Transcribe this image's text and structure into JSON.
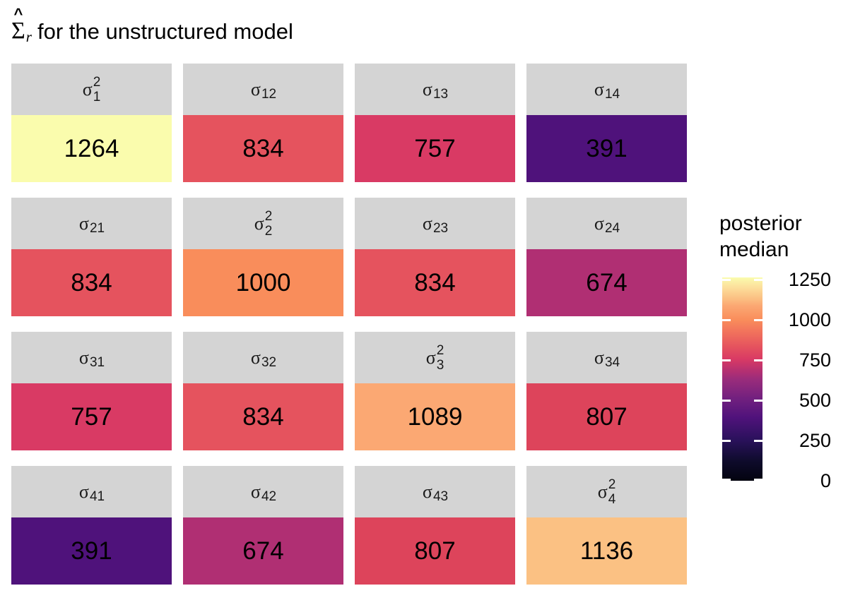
{
  "title": {
    "hat": "^",
    "sigma": "Σ",
    "subscript": "r",
    "text": "for the unstructured model"
  },
  "strip_background": "#D4D4D4",
  "facets": [
    {
      "id": "s11",
      "strip": {
        "base": "σ",
        "sub": "1",
        "sup": "2"
      },
      "value": "1264",
      "color": "#FAFCAD"
    },
    {
      "id": "s12",
      "strip": {
        "base": "σ",
        "sub": "12"
      },
      "value": "834",
      "color": "#E5535E"
    },
    {
      "id": "s13",
      "strip": {
        "base": "σ",
        "sub": "13"
      },
      "value": "757",
      "color": "#D93A64"
    },
    {
      "id": "s14",
      "strip": {
        "base": "σ",
        "sub": "14"
      },
      "value": "391",
      "color": "#4F127B"
    },
    {
      "id": "s21",
      "strip": {
        "base": "σ",
        "sub": "21"
      },
      "value": "834",
      "color": "#E5535E"
    },
    {
      "id": "s22",
      "strip": {
        "base": "σ",
        "sub": "2",
        "sup": "2"
      },
      "value": "1000",
      "color": "#F98D5B"
    },
    {
      "id": "s23",
      "strip": {
        "base": "σ",
        "sub": "23"
      },
      "value": "834",
      "color": "#E5535E"
    },
    {
      "id": "s24",
      "strip": {
        "base": "σ",
        "sub": "24"
      },
      "value": "674",
      "color": "#B02F73"
    },
    {
      "id": "s31",
      "strip": {
        "base": "σ",
        "sub": "31"
      },
      "value": "757",
      "color": "#D93A64"
    },
    {
      "id": "s32",
      "strip": {
        "base": "σ",
        "sub": "32"
      },
      "value": "834",
      "color": "#E5535E"
    },
    {
      "id": "s33",
      "strip": {
        "base": "σ",
        "sub": "3",
        "sup": "2"
      },
      "value": "1089",
      "color": "#FBA873"
    },
    {
      "id": "s34",
      "strip": {
        "base": "σ",
        "sub": "34"
      },
      "value": "807",
      "color": "#DD445B"
    },
    {
      "id": "s41",
      "strip": {
        "base": "σ",
        "sub": "41"
      },
      "value": "391",
      "color": "#4F127B"
    },
    {
      "id": "s42",
      "strip": {
        "base": "σ",
        "sub": "42"
      },
      "value": "674",
      "color": "#B02F73"
    },
    {
      "id": "s43",
      "strip": {
        "base": "σ",
        "sub": "43"
      },
      "value": "807",
      "color": "#DD445B"
    },
    {
      "id": "s44",
      "strip": {
        "base": "σ",
        "sub": "4",
        "sup": "2"
      },
      "value": "1136",
      "color": "#FBC183"
    }
  ],
  "legend": {
    "title_line1": "posterior",
    "title_line2": "median",
    "range": [
      0,
      1264
    ],
    "ticks": [
      {
        "label": "1250",
        "value": 1250
      },
      {
        "label": "1000",
        "value": 1000
      },
      {
        "label": "750",
        "value": 750
      },
      {
        "label": "500",
        "value": 500
      },
      {
        "label": "250",
        "value": 250
      },
      {
        "label": "0",
        "value": 0
      }
    ],
    "gradient_stops": [
      {
        "value": 0,
        "color": "#030310"
      },
      {
        "value": 120,
        "color": "#0E0B2B"
      },
      {
        "value": 250,
        "color": "#29115A"
      },
      {
        "value": 391,
        "color": "#4F127B"
      },
      {
        "value": 510,
        "color": "#71207F"
      },
      {
        "value": 630,
        "color": "#9A2C7B"
      },
      {
        "value": 674,
        "color": "#B02F73"
      },
      {
        "value": 757,
        "color": "#D93A64"
      },
      {
        "value": 834,
        "color": "#E5535E"
      },
      {
        "value": 930,
        "color": "#F2745C"
      },
      {
        "value": 1000,
        "color": "#F98D5B"
      },
      {
        "value": 1089,
        "color": "#FBA873"
      },
      {
        "value": 1136,
        "color": "#FBC183"
      },
      {
        "value": 1205,
        "color": "#FCE09C"
      },
      {
        "value": 1264,
        "color": "#FAFCAD"
      }
    ]
  },
  "chart_data": {
    "type": "heatmap",
    "title": "Σ̂_r for the unstructured model",
    "rows": [
      "1",
      "2",
      "3",
      "4"
    ],
    "cols": [
      "1",
      "2",
      "3",
      "4"
    ],
    "cell_labels": [
      [
        "σ_1^2",
        "σ_12",
        "σ_13",
        "σ_14"
      ],
      [
        "σ_21",
        "σ_2^2",
        "σ_23",
        "σ_24"
      ],
      [
        "σ_31",
        "σ_32",
        "σ_3^2",
        "σ_34"
      ],
      [
        "σ_41",
        "σ_42",
        "σ_43",
        "σ_4^2"
      ]
    ],
    "values": [
      [
        1264,
        834,
        757,
        391
      ],
      [
        834,
        1000,
        834,
        674
      ],
      [
        757,
        834,
        1089,
        807
      ],
      [
        391,
        674,
        807,
        1136
      ]
    ],
    "legend_title": "posterior median",
    "colorbar_ticks": [
      1250,
      1000,
      750,
      500,
      250,
      0
    ],
    "colorbar_range": [
      0,
      1264
    ],
    "colormap": "magma",
    "legend_position": "right",
    "grid": false
  }
}
